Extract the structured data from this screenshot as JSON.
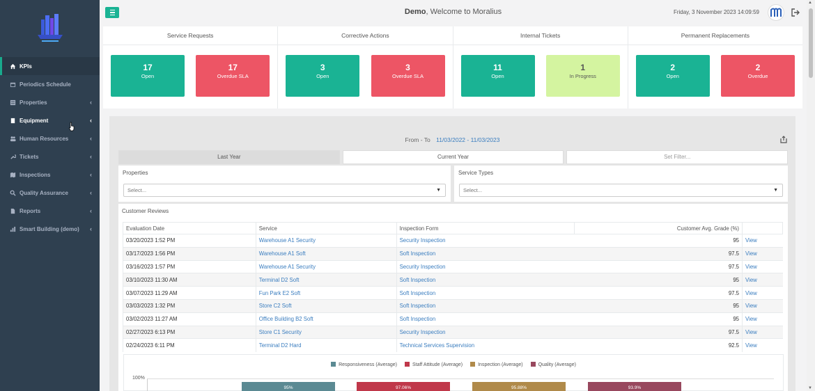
{
  "header": {
    "welcome_user": "Demo",
    "welcome_text": ", Welcome to Moralius",
    "datetime": "Friday, 3 November 2023 14:09:59"
  },
  "sidebar": {
    "items": [
      {
        "label": "KPIs",
        "icon": "home-icon"
      },
      {
        "label": "Periodics Schedule",
        "icon": "calendar-icon"
      },
      {
        "label": "Properties",
        "icon": "building-icon"
      },
      {
        "label": "Equipment",
        "icon": "book-icon"
      },
      {
        "label": "Human Resources",
        "icon": "users-icon"
      },
      {
        "label": "Tickets",
        "icon": "wrench-icon"
      },
      {
        "label": "Inspections",
        "icon": "map-icon"
      },
      {
        "label": "Quality Assurance",
        "icon": "search-icon"
      },
      {
        "label": "Reports",
        "icon": "file-icon"
      },
      {
        "label": "Smart Building (demo)",
        "icon": "chart-icon"
      }
    ]
  },
  "kpis": [
    {
      "title": "Service Requests",
      "boxes": [
        {
          "n": "17",
          "l": "Open",
          "c": "green"
        },
        {
          "n": "17",
          "l": "Overdue SLA",
          "c": "red"
        }
      ]
    },
    {
      "title": "Corrective Actions",
      "boxes": [
        {
          "n": "3",
          "l": "Open",
          "c": "green"
        },
        {
          "n": "3",
          "l": "Overdue SLA",
          "c": "red"
        }
      ]
    },
    {
      "title": "Internal Tickets",
      "boxes": [
        {
          "n": "11",
          "l": "Open",
          "c": "green"
        },
        {
          "n": "1",
          "l": "In Progress",
          "c": "lime"
        }
      ]
    },
    {
      "title": "Permanent Replacements",
      "boxes": [
        {
          "n": "2",
          "l": "Open",
          "c": "green"
        },
        {
          "n": "2",
          "l": "Overdue",
          "c": "red"
        }
      ]
    }
  ],
  "filters": {
    "from_to_label": "From - To",
    "range": "11/03/2022 - 11/03/2023",
    "tabs": [
      "Last Year",
      "Current Year",
      "Set Filter..."
    ],
    "properties_label": "Properties",
    "properties_value": "Select...",
    "service_types_label": "Service Types",
    "service_types_value": "Select..."
  },
  "reviews": {
    "title": "Customer Reviews",
    "columns": [
      "Evaluation Date",
      "Service",
      "Inspection Form",
      "Customer Avg. Grade (%)",
      ""
    ],
    "rows": [
      [
        "03/20/2023 1:52 PM",
        "Warehouse A1 Security",
        "Security Inspection",
        "95",
        "View"
      ],
      [
        "03/17/2023 1:56 PM",
        "Warehouse A1 Soft",
        "Soft Inspection",
        "97.5",
        "View"
      ],
      [
        "03/16/2023 1:57 PM",
        "Warehouse A1 Security",
        "Security Inspection",
        "97.5",
        "View"
      ],
      [
        "03/10/2023 11:30 AM",
        "Terminal D2 Soft",
        "Soft Inspection",
        "95",
        "View"
      ],
      [
        "03/07/2023 11:29 AM",
        "Fun Park E2 Soft",
        "Soft Inspection",
        "97.5",
        "View"
      ],
      [
        "03/03/2023 1:32 PM",
        "Store C2 Soft",
        "Soft Inspection",
        "95",
        "View"
      ],
      [
        "03/02/2023 11:27 AM",
        "Office Building B2 Soft",
        "Soft Inspection",
        "95",
        "View"
      ],
      [
        "02/27/2023 6:13 PM",
        "Store C1 Security",
        "Security Inspection",
        "97.5",
        "View"
      ],
      [
        "02/24/2023 6:11 PM",
        "Terminal D2 Hard",
        "Technical Services Supervision",
        "92.5",
        "View"
      ]
    ]
  },
  "chart": {
    "ytick": "100%",
    "legend": [
      {
        "name": "Responsiveness (Average)",
        "color": "#5b8a93"
      },
      {
        "name": "Staff Attitude (Average)",
        "color": "#c0384a"
      },
      {
        "name": "Inspection (Average)",
        "color": "#b08a4a"
      },
      {
        "name": "Quality (Average)",
        "color": "#98485e"
      }
    ],
    "bar_labels": [
      "95%",
      "97.06%",
      "95.88%",
      "93.9%"
    ]
  },
  "chart_data": {
    "type": "bar",
    "categories": [
      "Responsiveness (Average)",
      "Staff Attitude (Average)",
      "Inspection (Average)",
      "Quality (Average)"
    ],
    "values": [
      95,
      97.06,
      95.88,
      93.9
    ],
    "ylabel": "",
    "ylim": [
      0,
      100
    ]
  }
}
